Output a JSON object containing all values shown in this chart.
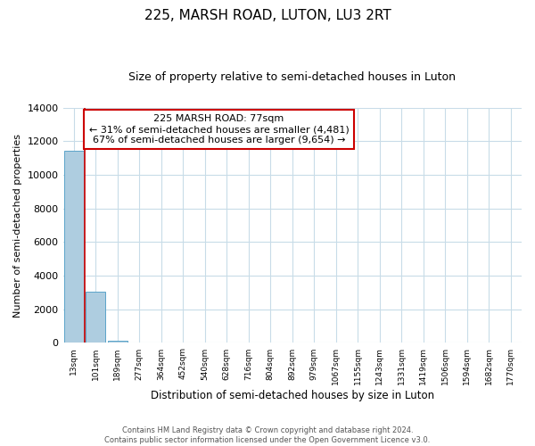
{
  "title": "225, MARSH ROAD, LUTON, LU3 2RT",
  "subtitle": "Size of property relative to semi-detached houses in Luton",
  "xlabel": "Distribution of semi-detached houses by size in Luton",
  "ylabel": "Number of semi-detached properties",
  "bar_labels": [
    "13sqm",
    "101sqm",
    "189sqm",
    "277sqm",
    "364sqm",
    "452sqm",
    "540sqm",
    "628sqm",
    "716sqm",
    "804sqm",
    "892sqm",
    "979sqm",
    "1067sqm",
    "1155sqm",
    "1243sqm",
    "1331sqm",
    "1419sqm",
    "1506sqm",
    "1594sqm",
    "1682sqm",
    "1770sqm"
  ],
  "bar_values": [
    11450,
    3050,
    130,
    0,
    0,
    0,
    0,
    0,
    0,
    0,
    0,
    0,
    0,
    0,
    0,
    0,
    0,
    0,
    0,
    0,
    0
  ],
  "bar_color": "#aecde0",
  "bar_edge_color": "#5ba3c9",
  "ylim": [
    0,
    14000
  ],
  "yticks": [
    0,
    2000,
    4000,
    6000,
    8000,
    10000,
    12000,
    14000
  ],
  "property_line_color": "#cc0000",
  "annotation_text_line1": "225 MARSH ROAD: 77sqm",
  "annotation_text_line2": "← 31% of semi-detached houses are smaller (4,481)",
  "annotation_text_line3": "67% of semi-detached houses are larger (9,654) →",
  "annotation_box_color": "#ffffff",
  "annotation_box_edge_color": "#cc0000",
  "footer_line1": "Contains HM Land Registry data © Crown copyright and database right 2024.",
  "footer_line2": "Contains public sector information licensed under the Open Government Licence v3.0.",
  "background_color": "#ffffff",
  "grid_color": "#c8dce8"
}
